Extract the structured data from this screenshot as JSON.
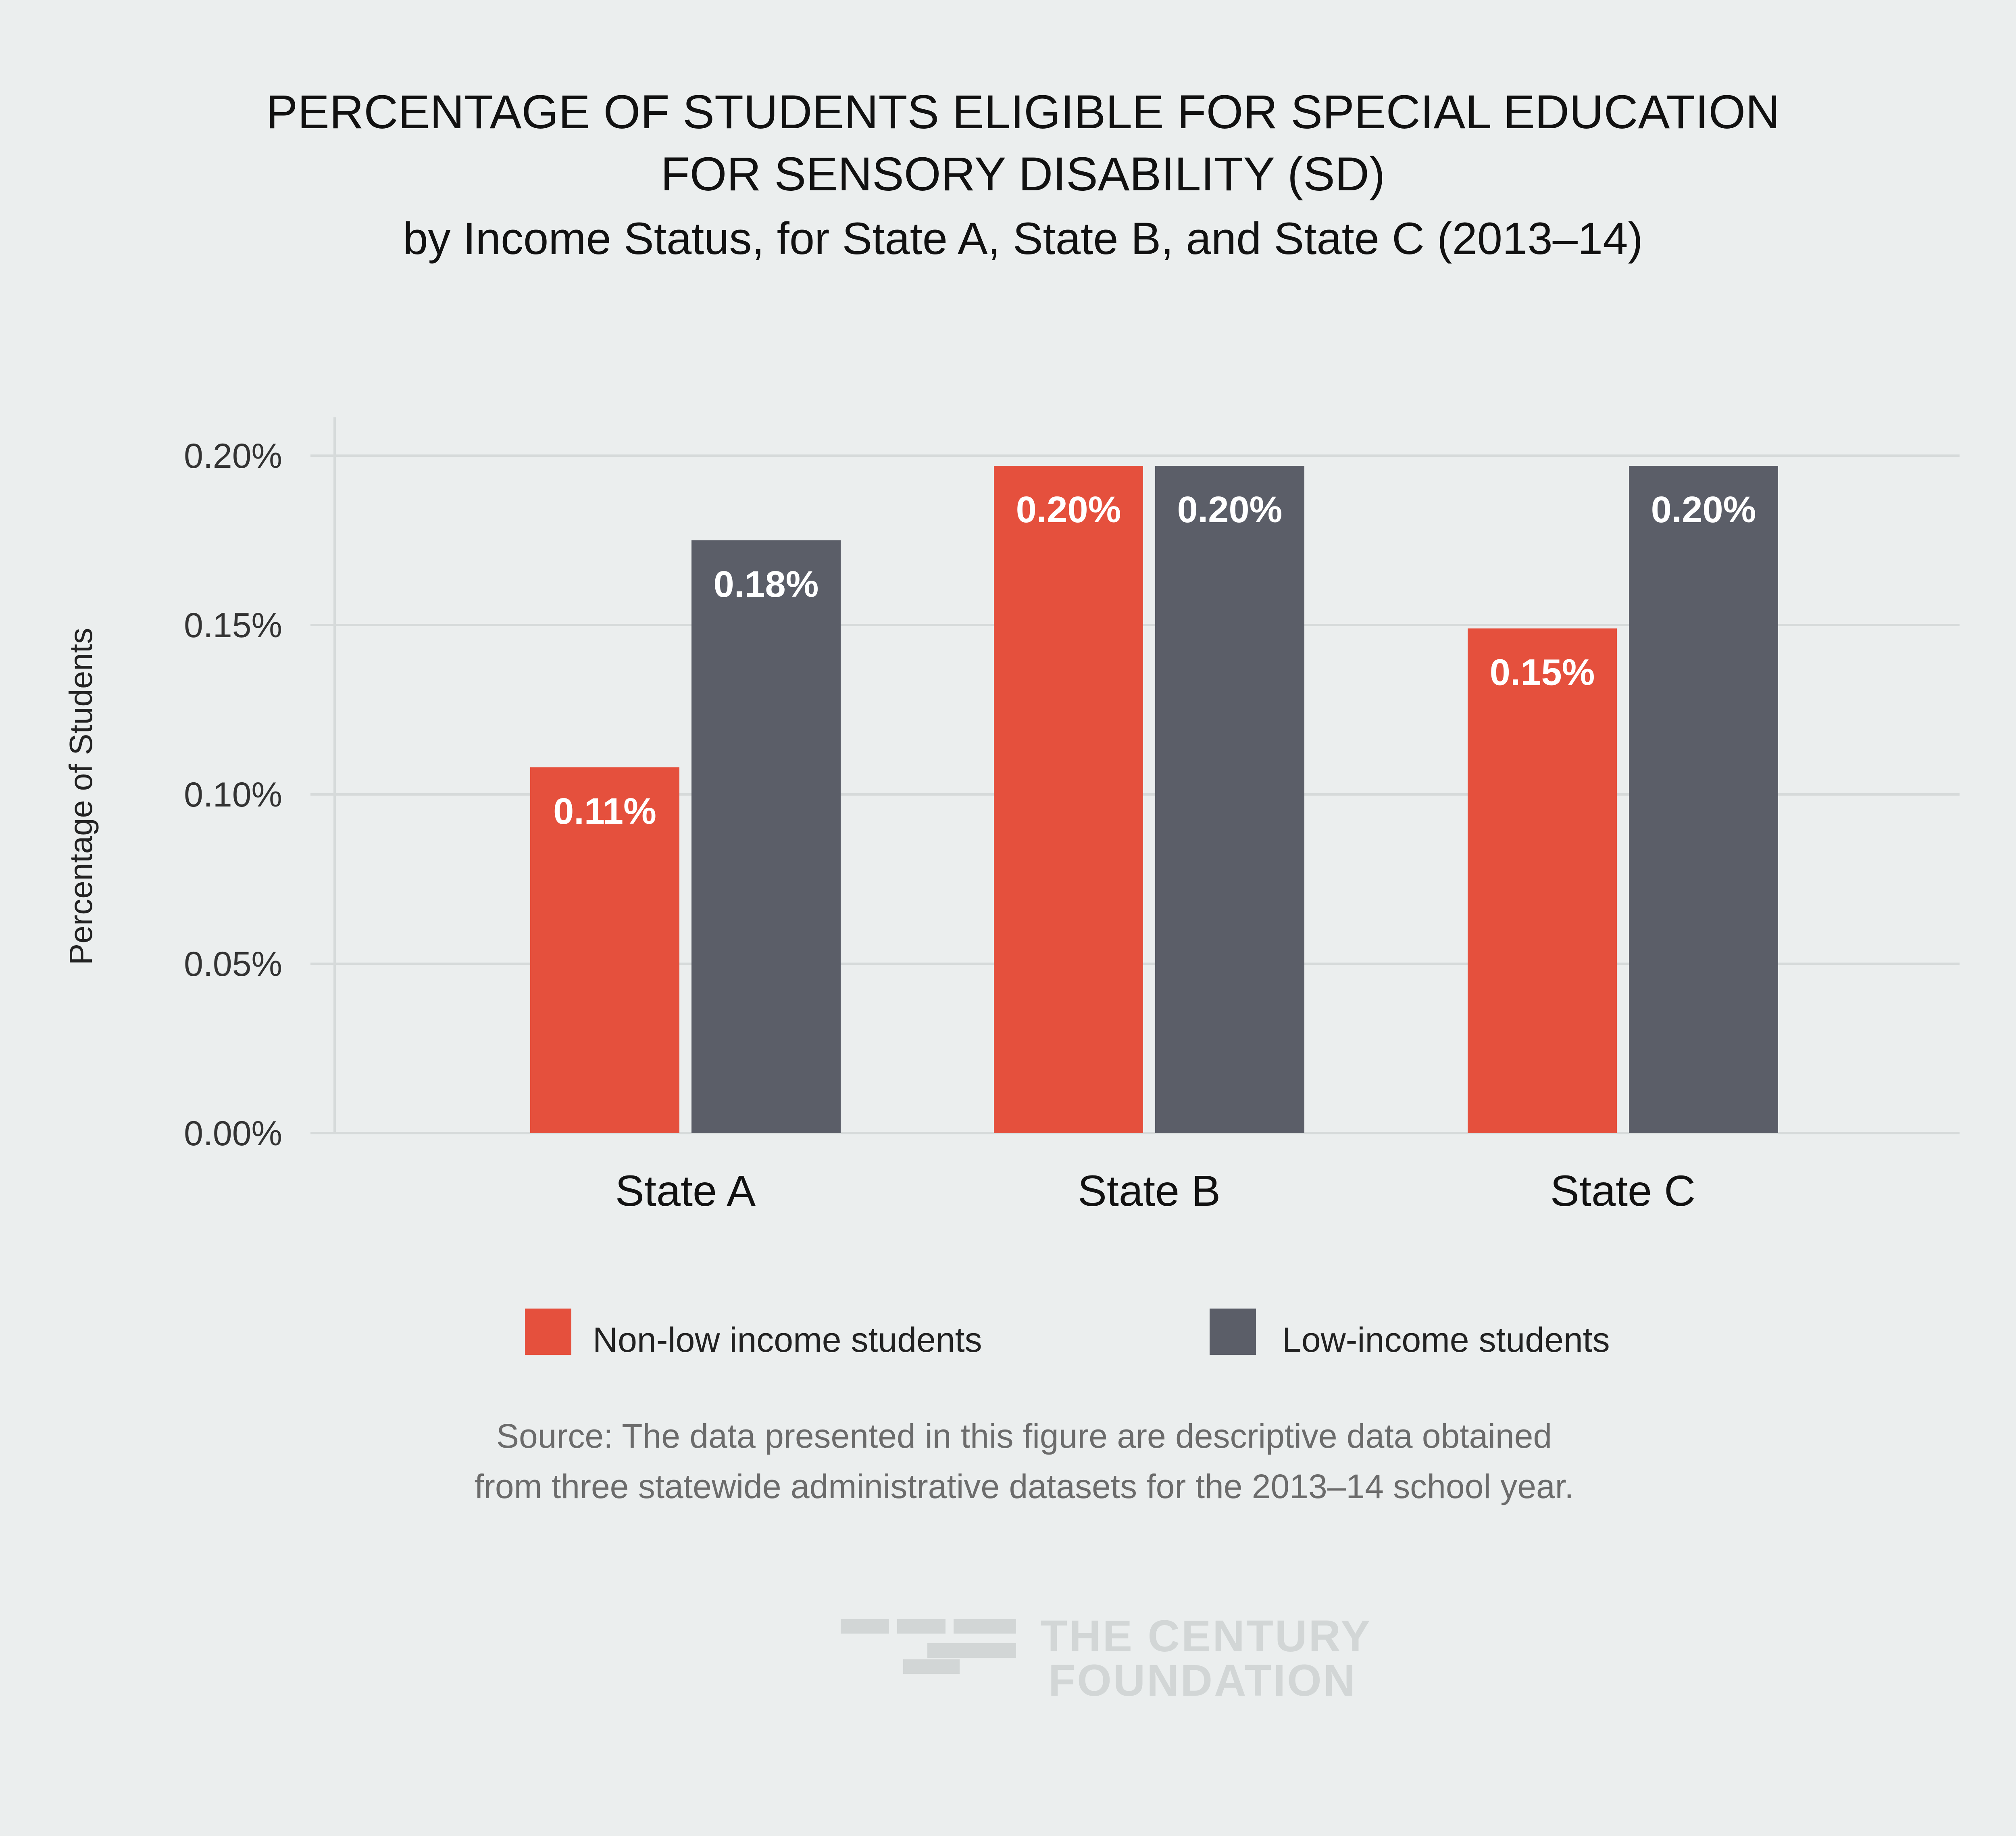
{
  "title_lines": [
    "PERCENTAGE OF STUDENTS ELIGIBLE FOR SPECIAL EDUCATION",
    "FOR SENSORY DISABILITY (SD)"
  ],
  "subtitle": "by Income Status, for State A, State B, and State C (2013–14)",
  "source_lines": [
    "Source: The data presented in this figure are descriptive data obtained",
    "from three statewide administrative datasets for the 2013–14 school year."
  ],
  "logo": {
    "line1": "THE CENTURY",
    "line2": "FOUNDATION"
  },
  "colors": {
    "non_low_income": "#e5503d",
    "low_income": "#5b5e68",
    "grid": "#d6dada",
    "background": "#ebeeee"
  },
  "chart_data": {
    "type": "bar",
    "title": "PERCENTAGE OF STUDENTS ELIGIBLE FOR SPECIAL EDUCATION FOR SENSORY DISABILITY (SD)",
    "subtitle": "by Income Status, for State A, State B, and State C (2013–14)",
    "xlabel": "",
    "ylabel": "Percentage of Students",
    "ylim": [
      0,
      0.2
    ],
    "yticks": [
      0,
      0.05,
      0.1,
      0.15,
      0.2
    ],
    "ytick_labels": [
      "0.00%",
      "0.05%",
      "0.10%",
      "0.15%",
      "0.20%"
    ],
    "grid": true,
    "legend_position": "bottom",
    "categories": [
      "State A",
      "State B",
      "State C"
    ],
    "series": [
      {
        "name": "Non-low income students",
        "values": [
          0.108,
          0.197,
          0.149
        ],
        "labels": [
          "0.11%",
          "0.20%",
          "0.15%"
        ]
      },
      {
        "name": "Low-income students",
        "values": [
          0.175,
          0.197,
          0.197
        ],
        "labels": [
          "0.18%",
          "0.20%",
          "0.20%"
        ]
      }
    ]
  }
}
